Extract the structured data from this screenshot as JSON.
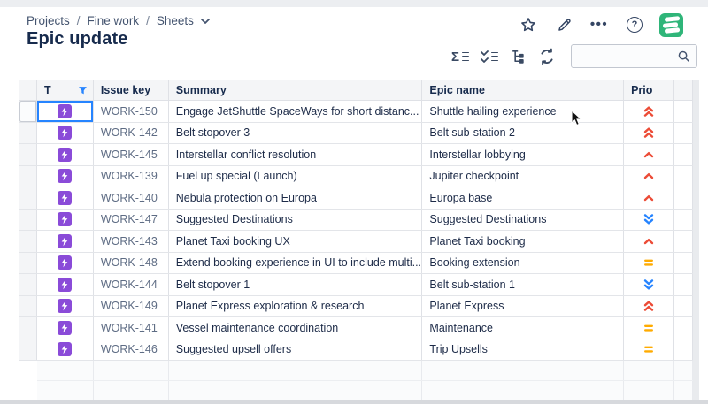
{
  "breadcrumb": {
    "separator": "/",
    "items": [
      "Projects",
      "Fine work",
      "Sheets"
    ]
  },
  "title": "Epic update",
  "header_actions": {
    "icons": [
      "star-icon",
      "edit-icon",
      "more-icon",
      "help-icon",
      "app-logo"
    ],
    "more_label": "•••",
    "help_label": "?"
  },
  "toolbar": {
    "icons": [
      "sum-list-icon",
      "checklist-icon",
      "hierarchy-icon",
      "refresh-icon"
    ],
    "sigma_glyph": "Σ",
    "search": {
      "placeholder": "",
      "value": ""
    }
  },
  "table": {
    "columns": [
      {
        "label": "T"
      },
      {
        "label": "Issue key"
      },
      {
        "label": "Summary"
      },
      {
        "label": "Epic name"
      },
      {
        "label": "Prio"
      }
    ],
    "issue_type": "epic",
    "rows": [
      {
        "key": "WORK-150",
        "summary": "Engage JetShuttle SpaceWays for short distanc...",
        "epic": "Shuttle hailing experience",
        "priority": "highest",
        "selected": true
      },
      {
        "key": "WORK-142",
        "summary": "Belt stopover 3",
        "epic": "Belt sub-station 2",
        "priority": "highest",
        "selected": false
      },
      {
        "key": "WORK-145",
        "summary": "Interstellar conflict resolution",
        "epic": "Interstellar lobbying",
        "priority": "high",
        "selected": false
      },
      {
        "key": "WORK-139",
        "summary": "Fuel up special (Launch)",
        "epic": "Jupiter checkpoint",
        "priority": "high",
        "selected": false
      },
      {
        "key": "WORK-140",
        "summary": "Nebula protection on Europa",
        "epic": "Europa base",
        "priority": "high",
        "selected": false
      },
      {
        "key": "WORK-147",
        "summary": "Suggested Destinations",
        "epic": "Suggested Destinations",
        "priority": "lowest",
        "selected": false
      },
      {
        "key": "WORK-143",
        "summary": "Planet Taxi booking UX",
        "epic": "Planet Taxi booking",
        "priority": "high",
        "selected": false
      },
      {
        "key": "WORK-148",
        "summary": "Extend booking experience in UI to include multi...",
        "epic": "Booking extension",
        "priority": "medium",
        "selected": false
      },
      {
        "key": "WORK-144",
        "summary": "Belt stopover 1",
        "epic": "Belt sub-station 1",
        "priority": "lowest",
        "selected": false
      },
      {
        "key": "WORK-149",
        "summary": "Planet Express exploration & research",
        "epic": "Planet Express",
        "priority": "highest",
        "selected": false
      },
      {
        "key": "WORK-141",
        "summary": "Vessel maintenance coordination",
        "epic": "Maintenance",
        "priority": "medium",
        "selected": false
      },
      {
        "key": "WORK-146",
        "summary": "Suggested upsell offers",
        "epic": "Trip Upsells",
        "priority": "medium",
        "selected": false
      }
    ],
    "empty_rows": 2
  },
  "colors": {
    "accent_blue": "#2684FF",
    "priority_highest": "#EC4C37",
    "priority_high": "#EC4C37",
    "priority_medium": "#FFAB00",
    "priority_lowest": "#2684FF",
    "epic_purple": "#8A4BD8",
    "logo_green": "#2FB579",
    "filter_blue": "#2684FF"
  }
}
